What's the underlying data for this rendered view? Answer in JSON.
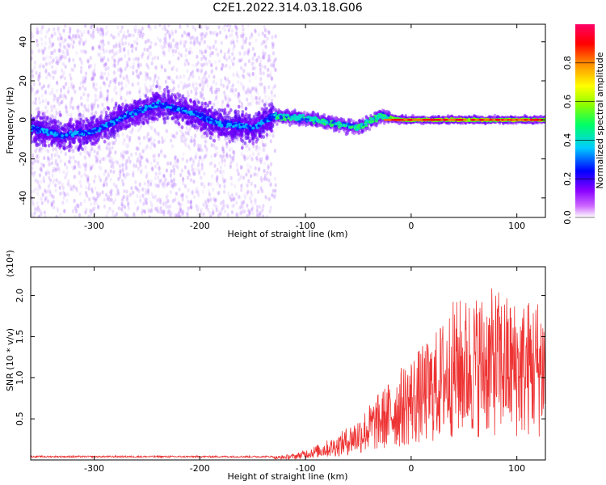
{
  "title": "C2E1.2022.314.03.18.G06",
  "chart_data": [
    {
      "type": "heatmap",
      "xlabel": "Height of straight line (km)",
      "ylabel": "Frequency (Hz)",
      "xlim": [
        -360,
        127
      ],
      "ylim": [
        -50,
        49
      ],
      "xticks": [
        -300,
        -200,
        -100,
        0,
        100
      ],
      "yticks": [
        -40,
        -20,
        0,
        20,
        40
      ],
      "colorbar": {
        "label": "Normalized spectral amplitude",
        "range": [
          0.0,
          1.0
        ],
        "ticks": [
          "0.0",
          "0.2",
          "0.4",
          "0.6",
          "0.8"
        ],
        "colors": [
          "#ffffff",
          "#cc66ff",
          "#8800ff",
          "#0000ff",
          "#00ccff",
          "#00ff66",
          "#88ff00",
          "#ffff00",
          "#ff8800",
          "#ff0000",
          "#ff0066"
        ]
      },
      "ridge": {
        "x": [
          -360,
          -330,
          -300,
          -270,
          -240,
          -210,
          -180,
          -150,
          -130,
          -110,
          -90,
          -70,
          -50,
          -30,
          -10,
          0,
          40,
          80,
          127
        ],
        "y": [
          -4,
          -8,
          -6,
          2,
          8,
          4,
          -2,
          -4,
          2,
          1,
          0,
          -2,
          -4,
          2,
          0,
          0,
          0,
          0,
          0
        ]
      }
    },
    {
      "type": "line",
      "xlabel": "Height of straight line (km)",
      "ylabel": "SNR (10 * v/v)",
      "yscale_label": "(x10⁴)",
      "xlim": [
        -360,
        127
      ],
      "ylim": [
        0,
        2.35
      ],
      "xticks": [
        -300,
        -200,
        -100,
        0,
        100
      ],
      "yticks": [
        "0.5",
        "1.0",
        "1.5",
        "2.0"
      ],
      "color": "#ee3333",
      "envelope": {
        "x": [
          -360,
          -130,
          -110,
          -90,
          -70,
          -50,
          -30,
          -15,
          0,
          20,
          40,
          60,
          80,
          100,
          127
        ],
        "y": [
          0.03,
          0.03,
          0.05,
          0.12,
          0.2,
          0.35,
          0.55,
          0.7,
          0.85,
          1.0,
          1.3,
          1.35,
          1.4,
          1.3,
          1.35
        ]
      }
    }
  ]
}
